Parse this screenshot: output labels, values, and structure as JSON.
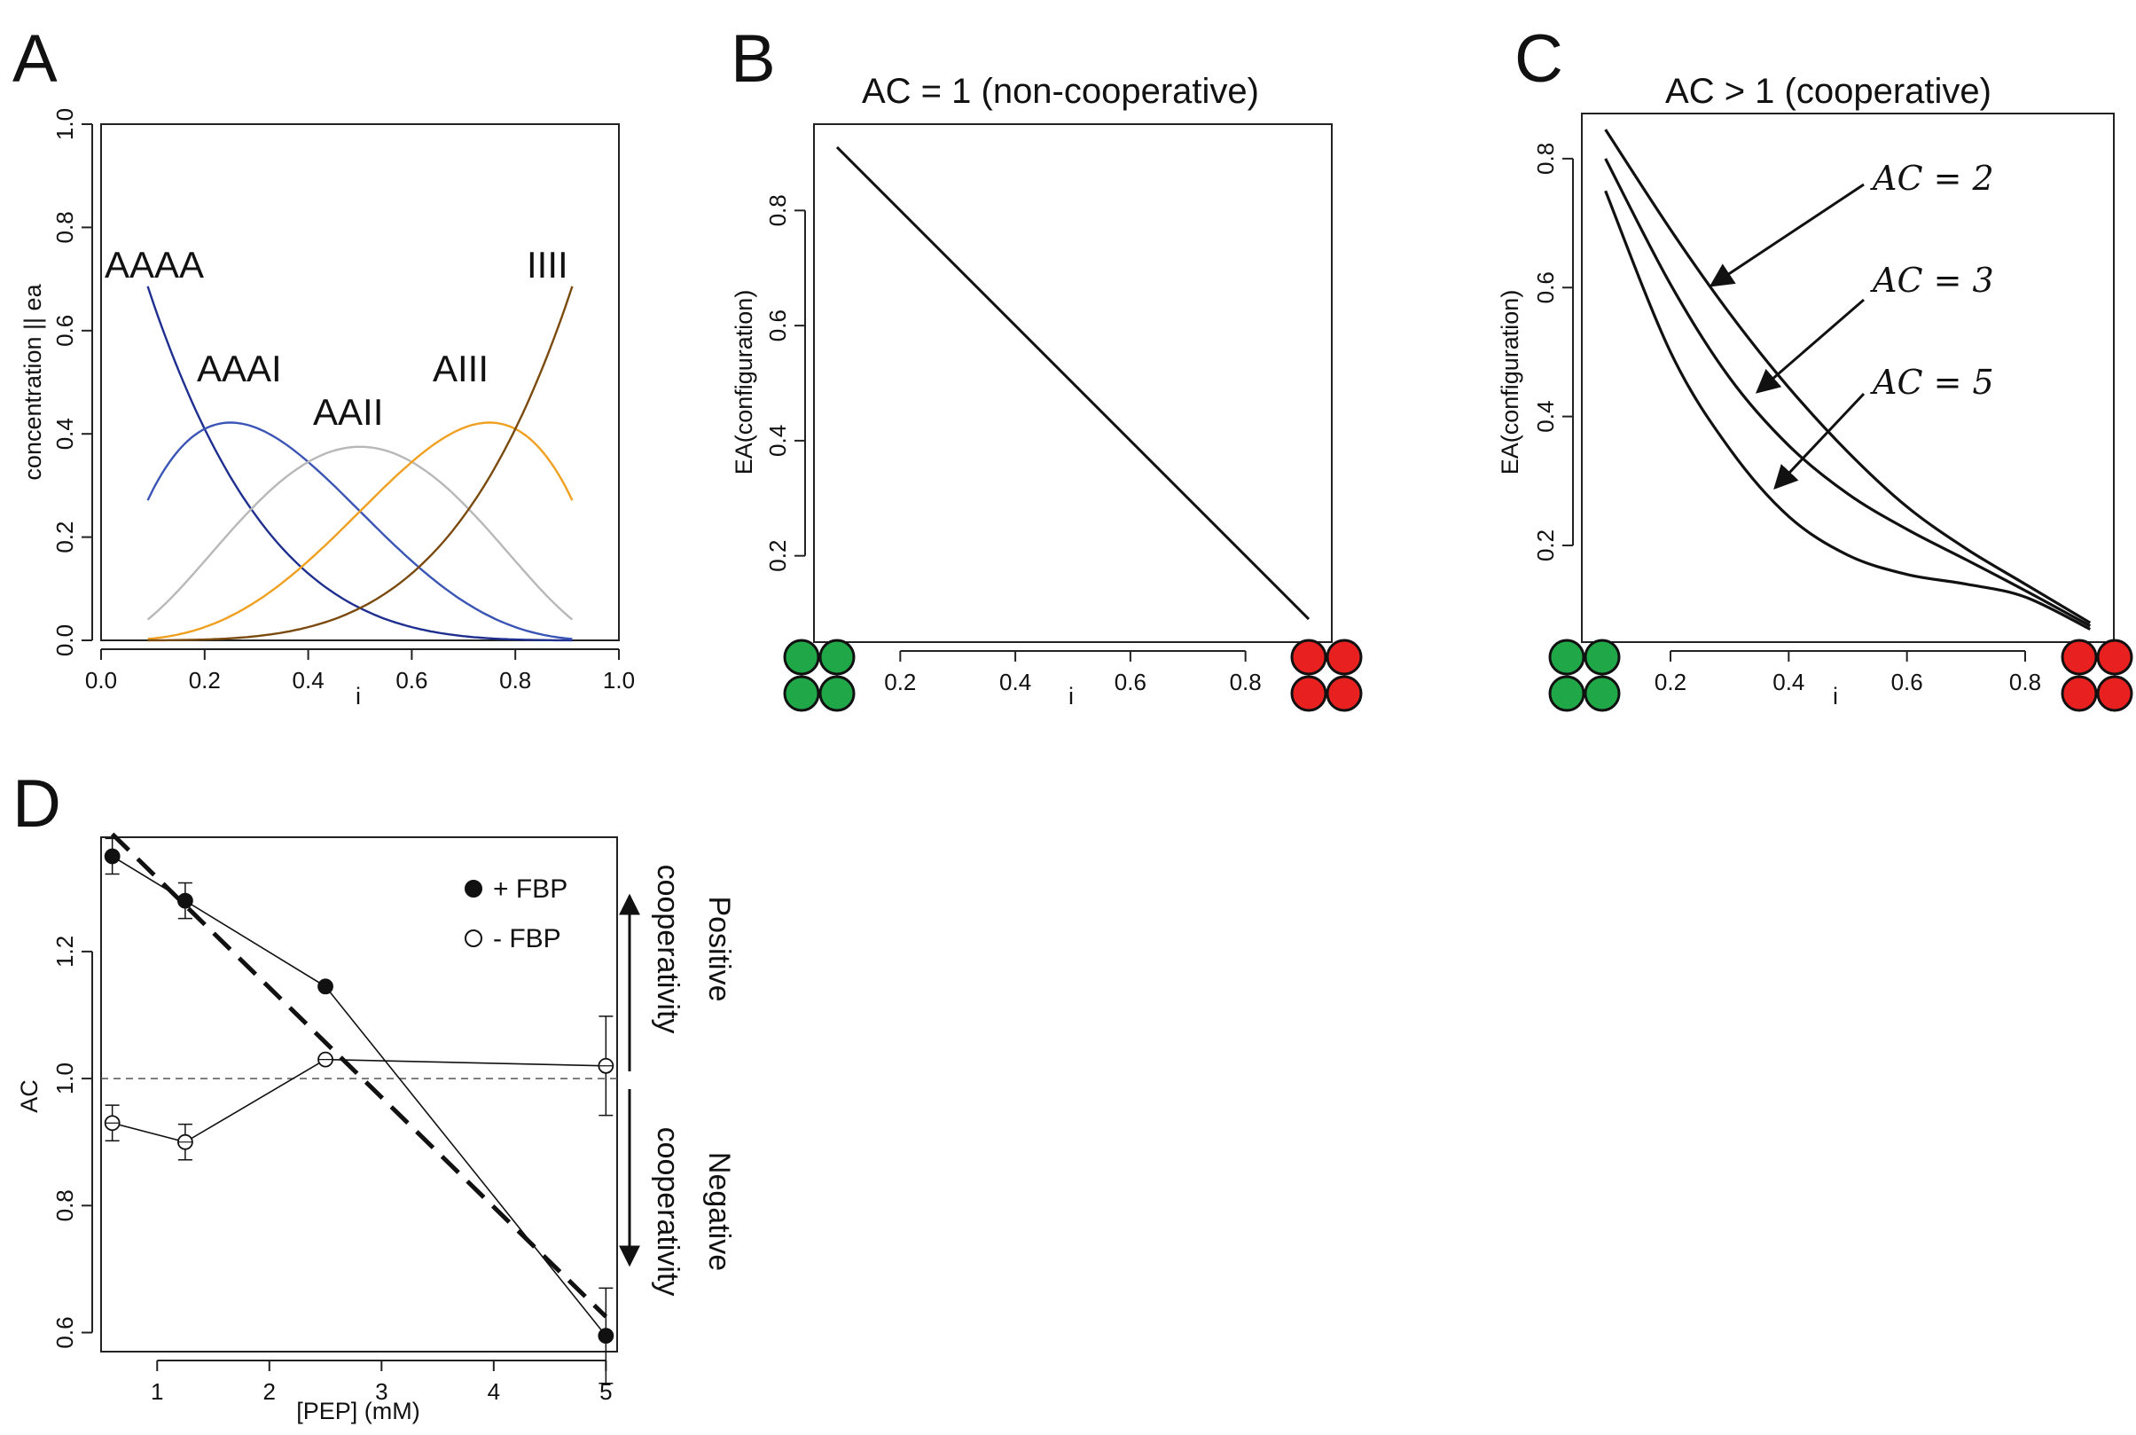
{
  "figure": {
    "panel_letters": [
      "A",
      "B",
      "C",
      "D"
    ]
  },
  "chart_data": [
    {
      "id": "A",
      "type": "line",
      "xlabel": "i",
      "ylabel": "concentration || ea",
      "xlim": [
        0.0,
        1.0
      ],
      "ylim": [
        0.0,
        1.0
      ],
      "xticks": [
        "0.0",
        "0.2",
        "0.4",
        "0.6",
        "0.8",
        "1.0"
      ],
      "yticks": [
        "0.0",
        "0.2",
        "0.4",
        "0.6",
        "0.8",
        "1.0"
      ],
      "x_range": [
        0.09,
        0.91
      ],
      "series": [
        {
          "name": "AAAA",
          "color": "#1f2f8f",
          "formula": "(1-i)^4"
        },
        {
          "name": "AAAI",
          "color": "#3a55b5",
          "formula": "4 i (1-i)^3"
        },
        {
          "name": "AAII",
          "color": "#b8b8b8",
          "formula": "6 i^2 (1-i)^2"
        },
        {
          "name": "AIII",
          "color": "#f0a020",
          "formula": "4 i^3 (1-i)"
        },
        {
          "name": "IIII",
          "color": "#7a4a0e",
          "formula": "i^4"
        }
      ]
    },
    {
      "id": "B",
      "type": "line",
      "title": "AC = 1 (non-cooperative)",
      "xlabel": "i",
      "ylabel": "EA(configuration)",
      "xlim": [
        0.05,
        0.95
      ],
      "ylim": [
        0.05,
        0.95
      ],
      "xticks": [
        "0.2",
        "0.4",
        "0.6",
        "0.8"
      ],
      "yticks": [
        "0.2",
        "0.4",
        "0.6",
        "0.8"
      ],
      "series": [
        {
          "x": [
            0.09,
            0.91
          ],
          "y": [
            0.91,
            0.09
          ]
        }
      ]
    },
    {
      "id": "C",
      "type": "line",
      "title": "AC > 1 (cooperative)",
      "xlabel": "i",
      "ylabel": "EA(configuration)",
      "xlim": [
        0.05,
        0.95
      ],
      "ylim": [
        0.05,
        0.87
      ],
      "xticks": [
        "0.2",
        "0.4",
        "0.6",
        "0.8"
      ],
      "yticks": [
        "0.2",
        "0.4",
        "0.6",
        "0.8"
      ],
      "annotations": [
        "AC = 2",
        "AC = 3",
        "AC = 5"
      ],
      "series": [
        {
          "x": [
            0.09,
            0.2,
            0.3,
            0.4,
            0.5,
            0.6,
            0.7,
            0.8,
            0.91
          ],
          "y": [
            0.845,
            0.69,
            0.56,
            0.445,
            0.345,
            0.26,
            0.195,
            0.14,
            0.08
          ]
        },
        {
          "x": [
            0.09,
            0.2,
            0.3,
            0.4,
            0.5,
            0.6,
            0.7,
            0.8,
            0.91
          ],
          "y": [
            0.8,
            0.605,
            0.46,
            0.355,
            0.28,
            0.225,
            0.178,
            0.13,
            0.075
          ]
        },
        {
          "x": [
            0.09,
            0.2,
            0.3,
            0.4,
            0.5,
            0.6,
            0.7,
            0.8,
            0.91
          ],
          "y": [
            0.75,
            0.5,
            0.35,
            0.245,
            0.185,
            0.155,
            0.14,
            0.12,
            0.07
          ]
        }
      ]
    },
    {
      "id": "D",
      "type": "line",
      "xlabel": "[PEP] (mM)",
      "ylabel": "AC",
      "xlim": [
        0.5,
        5.1
      ],
      "ylim": [
        0.57,
        1.38
      ],
      "xticks": [
        "1",
        "2",
        "3",
        "4",
        "5"
      ],
      "yticks": [
        "0.6",
        "0.8",
        "1.0",
        "1.2"
      ],
      "reference_line": 1.0,
      "legend": [
        "+ FBP",
        "- FBP"
      ],
      "side_labels": {
        "top_a": "Positive",
        "top_b": "cooperativity",
        "bottom_a": "Negative",
        "bottom_b": "cooperativity"
      },
      "series": [
        {
          "name": "+ FBP",
          "marker": "filled",
          "x": [
            0.6,
            1.25,
            2.5,
            5.0
          ],
          "y": [
            1.35,
            1.28,
            1.145,
            0.595
          ],
          "err": [
            0.028,
            0.028,
            0.0,
            0.075
          ]
        },
        {
          "name": "- FBP",
          "marker": "open",
          "x": [
            0.6,
            1.25,
            2.5,
            5.0
          ],
          "y": [
            0.93,
            0.9,
            1.03,
            1.02
          ],
          "err": [
            0.028,
            0.028,
            0.0,
            0.078
          ]
        }
      ],
      "fit_line": {
        "x": [
          0.6,
          5.0
        ],
        "y": [
          1.385,
          0.625
        ]
      }
    }
  ]
}
